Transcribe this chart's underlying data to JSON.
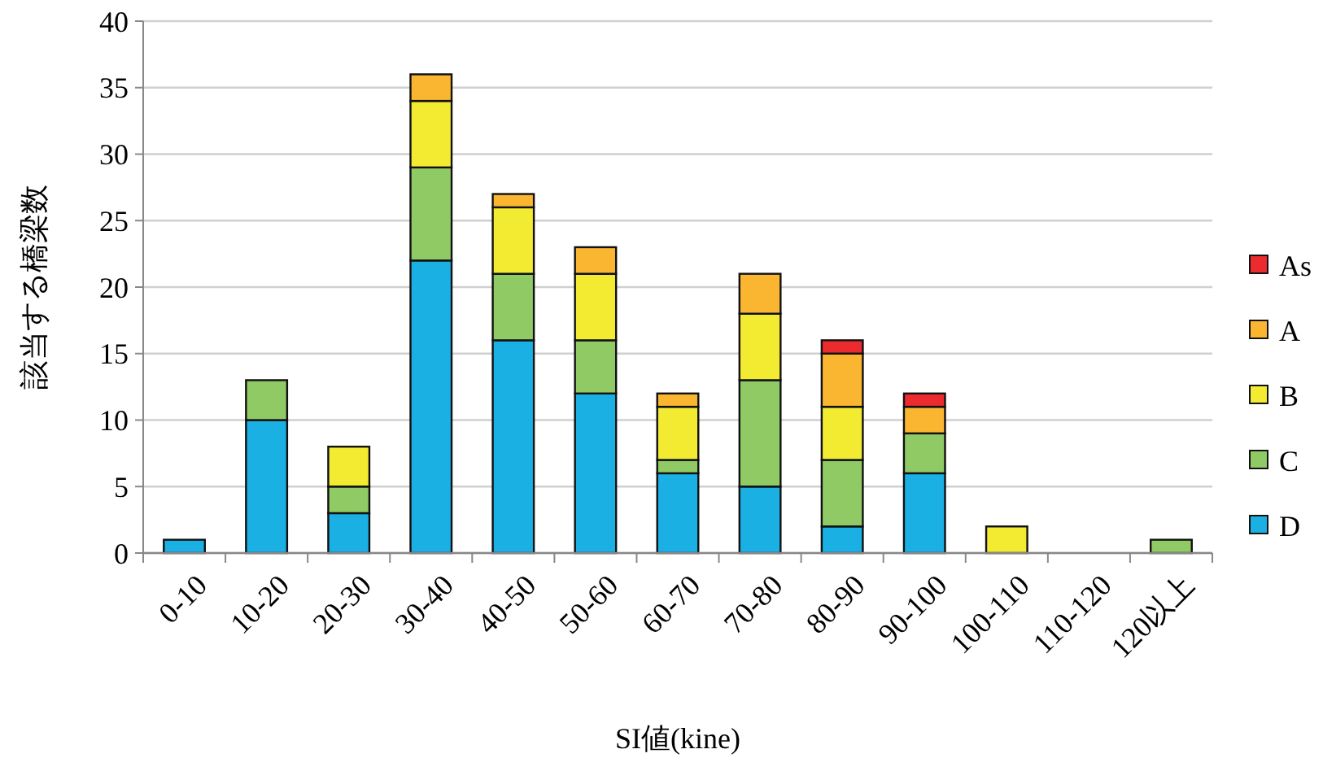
{
  "chart_data": {
    "type": "bar",
    "stacked": true,
    "xlabel": "SI値(kine)",
    "ylabel": "該当する橋梁数",
    "categories": [
      "0-10",
      "10-20",
      "20-30",
      "30-40",
      "40-50",
      "50-60",
      "60-70",
      "70-80",
      "80-90",
      "90-100",
      "100-110",
      "110-120",
      "120以上"
    ],
    "series": [
      {
        "name": "D",
        "color": "#1ab0e3",
        "values": [
          1,
          10,
          3,
          22,
          16,
          12,
          6,
          5,
          2,
          6,
          0,
          0,
          0
        ]
      },
      {
        "name": "C",
        "color": "#8fca65",
        "values": [
          0,
          3,
          2,
          7,
          5,
          4,
          1,
          8,
          5,
          3,
          0,
          0,
          1
        ]
      },
      {
        "name": "B",
        "color": "#f3ea32",
        "values": [
          0,
          0,
          3,
          5,
          5,
          5,
          4,
          5,
          4,
          0,
          2,
          0,
          0
        ]
      },
      {
        "name": "A",
        "color": "#fbb631",
        "values": [
          0,
          0,
          0,
          2,
          1,
          2,
          1,
          3,
          4,
          2,
          0,
          0,
          0
        ]
      },
      {
        "name": "As",
        "color": "#ec2b2f",
        "values": [
          0,
          0,
          0,
          0,
          0,
          0,
          0,
          0,
          1,
          1,
          0,
          0,
          0
        ]
      }
    ],
    "ylim": [
      0,
      40
    ],
    "yticks": [
      0,
      5,
      10,
      15,
      20,
      25,
      30,
      35,
      40
    ],
    "grid": "y",
    "legend": "right"
  }
}
